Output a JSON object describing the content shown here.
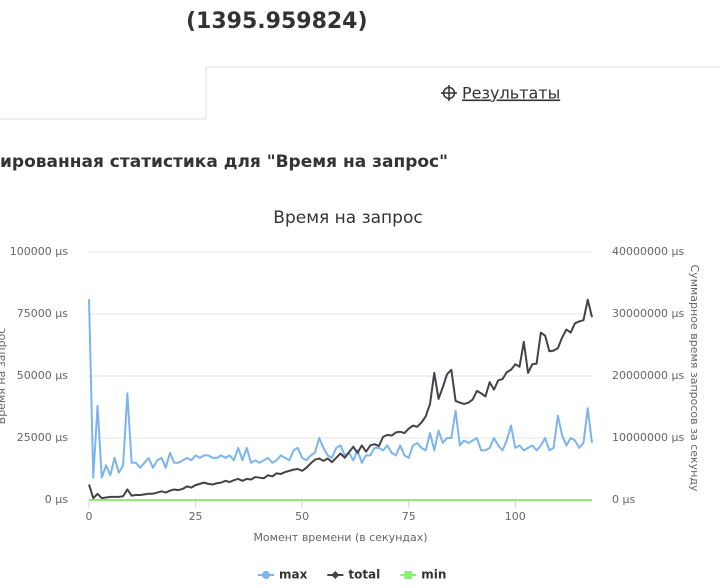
{
  "header": {
    "value": "(1395.959824)"
  },
  "tabs": [
    {
      "label": "Результаты"
    }
  ],
  "section_title": "ированная статистика для \"Время на запрос\"",
  "chart_data": {
    "type": "line",
    "title": "Время на запрос",
    "x_label": "Момент времени (в секундах)",
    "y_label": "Время на запрос",
    "y2_label": "Суммарное время запросов за секунду",
    "x": [
      0,
      1,
      2,
      3,
      4,
      5,
      6,
      7,
      8,
      9,
      10,
      11,
      12,
      13,
      14,
      15,
      16,
      17,
      18,
      19,
      20,
      21,
      22,
      23,
      24,
      25,
      26,
      27,
      28,
      29,
      30,
      31,
      32,
      33,
      34,
      35,
      36,
      37,
      38,
      39,
      40,
      41,
      42,
      43,
      44,
      45,
      46,
      47,
      48,
      49,
      50,
      51,
      52,
      53,
      54,
      55,
      56,
      57,
      58,
      59,
      60,
      61,
      62,
      63,
      64,
      65,
      66,
      67,
      68,
      69,
      70,
      71,
      72,
      73,
      74,
      75,
      76,
      77,
      78,
      79,
      80,
      81,
      82,
      83,
      84,
      85,
      86,
      87,
      88,
      89,
      90,
      91,
      92,
      93,
      94,
      95,
      96,
      97,
      98,
      99,
      100,
      101,
      102,
      103,
      104,
      105,
      106,
      107,
      108,
      109,
      110,
      111,
      112,
      113,
      114,
      115,
      116,
      117,
      118
    ],
    "xlim": [
      0,
      118
    ],
    "xticks": [
      0,
      25,
      50,
      75,
      100
    ],
    "ylim": [
      0,
      100000
    ],
    "yticks": [
      {
        "value": 0,
        "label": "0 µs"
      },
      {
        "value": 25000,
        "label": "25000 µs"
      },
      {
        "value": 50000,
        "label": "50000 µs"
      },
      {
        "value": 75000,
        "label": "75000 µs"
      },
      {
        "value": 100000,
        "label": "100000 µs"
      }
    ],
    "y2lim": [
      0,
      40000000
    ],
    "y2ticks": [
      {
        "value": 0,
        "label": "0 µs"
      },
      {
        "value": 10000000,
        "label": "10000000 µs"
      },
      {
        "value": 20000000,
        "label": "20000000 µs"
      },
      {
        "value": 30000000,
        "label": "30000000 µs"
      },
      {
        "value": 40000000,
        "label": "40000000 µs"
      }
    ],
    "grid": true,
    "legend": "bottom",
    "series": [
      {
        "name": "max",
        "color": "#7cb5ec",
        "marker": "circle",
        "values": [
          81000,
          9000,
          38000,
          9000,
          14000,
          10000,
          17000,
          11000,
          14000,
          43000,
          15000,
          15000,
          13000,
          15000,
          17000,
          13000,
          16000,
          17000,
          13000,
          19000,
          15000,
          15000,
          16000,
          17000,
          16000,
          18000,
          17000,
          18000,
          18000,
          17000,
          17000,
          18000,
          17000,
          18000,
          16000,
          21000,
          16000,
          21000,
          15000,
          16000,
          15000,
          16000,
          17000,
          15000,
          16000,
          18000,
          17000,
          16000,
          20000,
          21000,
          17000,
          16000,
          18000,
          19000,
          25000,
          21000,
          18000,
          17000,
          21000,
          22000,
          18000,
          19000,
          16000,
          20000,
          15000,
          18000,
          18000,
          21000,
          21000,
          20000,
          22000,
          19000,
          18000,
          22000,
          18000,
          17000,
          22000,
          23000,
          21000,
          20000,
          27000,
          20000,
          28000,
          23000,
          25000,
          25000,
          36000,
          22000,
          24000,
          23000,
          24000,
          25000,
          20000,
          20000,
          21000,
          25000,
          22000,
          20000,
          24000,
          30000,
          21000,
          22000,
          20000,
          21000,
          22000,
          20000,
          22000,
          25000,
          20000,
          21000,
          34000,
          26000,
          22000,
          25000,
          24000,
          21000,
          23000,
          37000,
          23000
        ]
      },
      {
        "name": "total",
        "color": "#434348",
        "marker": "diamond",
        "axis": "y2",
        "values": [
          2500000,
          300000,
          1000000,
          300000,
          400000,
          500000,
          500000,
          500000,
          600000,
          1700000,
          700000,
          800000,
          800000,
          900000,
          1000000,
          1000000,
          1200000,
          1400000,
          1200000,
          1500000,
          1700000,
          1600000,
          1800000,
          2200000,
          2000000,
          2400000,
          2600000,
          2800000,
          2600000,
          2500000,
          2700000,
          2800000,
          3100000,
          2900000,
          3200000,
          3400000,
          3100000,
          3400000,
          3300000,
          3700000,
          3600000,
          3500000,
          4000000,
          3800000,
          4300000,
          4200000,
          4500000,
          4700000,
          4900000,
          5000000,
          4700000,
          5200000,
          5900000,
          6500000,
          6700000,
          6300000,
          6700000,
          6100000,
          6800000,
          7500000,
          6800000,
          7700000,
          8600000,
          7600000,
          8800000,
          7800000,
          8800000,
          9000000,
          8700000,
          10200000,
          10500000,
          10400000,
          10900000,
          11000000,
          10800000,
          11500000,
          12000000,
          11800000,
          12500000,
          13500000,
          15500000,
          20500000,
          16300000,
          18200000,
          20300000,
          21000000,
          16000000,
          15700000,
          15500000,
          15700000,
          16200000,
          17600000,
          17200000,
          16700000,
          19000000,
          17800000,
          19300000,
          19500000,
          20600000,
          21000000,
          21900000,
          21500000,
          25500000,
          20500000,
          21900000,
          22000000,
          27000000,
          26500000,
          24000000,
          24100000,
          24500000,
          26200000,
          27500000,
          27000000,
          28500000,
          28800000,
          29000000,
          32300000,
          29500000
        ]
      },
      {
        "name": "min",
        "color": "#90ed7d",
        "marker": "square",
        "values": [
          0,
          0,
          0,
          0,
          0,
          0,
          0,
          0,
          0,
          0,
          0,
          0,
          0,
          0,
          0,
          0,
          0,
          0,
          0,
          0,
          0,
          0,
          0,
          0,
          0,
          0,
          0,
          0,
          0,
          0,
          0,
          0,
          0,
          0,
          0,
          0,
          0,
          0,
          0,
          0,
          0,
          0,
          0,
          0,
          0,
          0,
          0,
          0,
          0,
          0,
          0,
          0,
          0,
          0,
          0,
          0,
          0,
          0,
          0,
          0,
          0,
          0,
          0,
          0,
          0,
          0,
          0,
          0,
          0,
          0,
          0,
          0,
          0,
          0,
          0,
          0,
          0,
          0,
          0,
          0,
          0,
          0,
          0,
          0,
          0,
          0,
          0,
          0,
          0,
          0,
          0,
          0,
          0,
          0,
          0,
          0,
          0,
          0,
          0,
          0,
          0,
          0,
          0,
          0,
          0,
          0,
          0,
          0,
          0,
          0,
          0,
          0,
          0,
          0,
          0,
          0,
          0,
          0,
          0
        ]
      }
    ]
  }
}
